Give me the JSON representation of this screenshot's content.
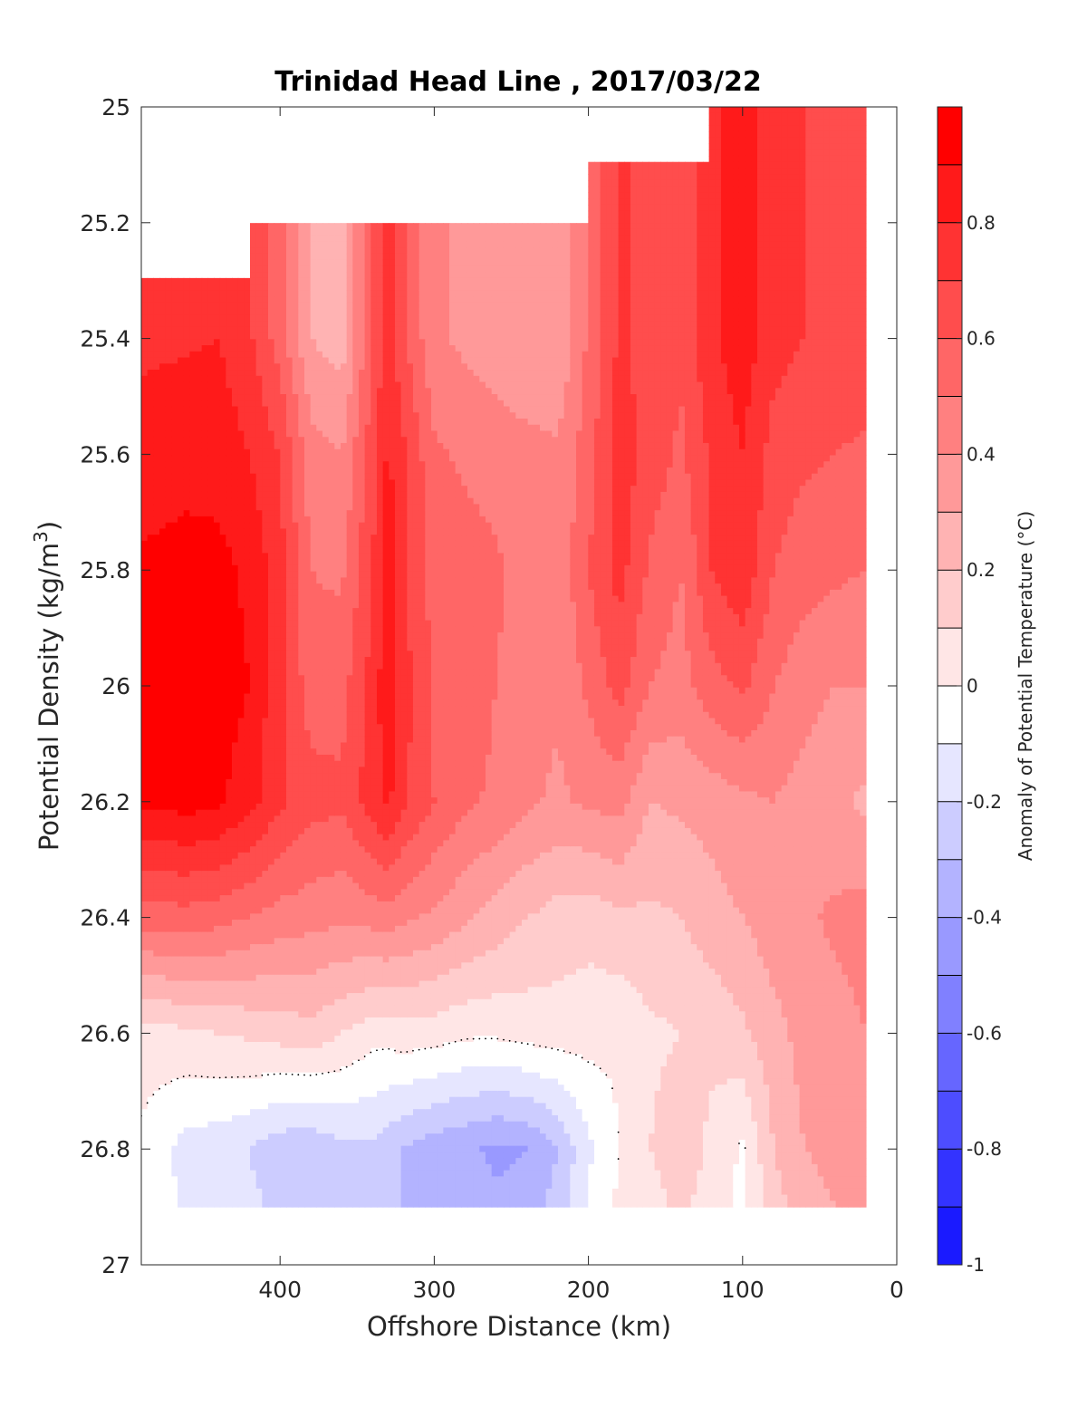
{
  "chart_data": {
    "type": "heatmap",
    "title": "Trinidad Head Line , 2017/03/22",
    "xlabel": "Offshore Distance (km)",
    "ylabel": "Potential Density (kg/m",
    "ylabel_sup": "3",
    "ylabel_close": ")",
    "colorbar_label": "Anomaly of Potential Temperature (°C)",
    "x_reversed": true,
    "xlim": [
      490,
      0
    ],
    "ylim": [
      25,
      27
    ],
    "y_reversed": true,
    "x_ticks": [
      400,
      300,
      200,
      100,
      0
    ],
    "y_ticks": [
      25,
      25.2,
      25.4,
      25.6,
      25.8,
      26,
      26.2,
      26.4,
      26.6,
      26.8,
      27
    ],
    "y_tick_labels": [
      "25",
      "25.2",
      "25.4",
      "25.6",
      "25.8",
      "26",
      "26.2",
      "26.4",
      "26.6",
      "26.8",
      "27"
    ],
    "colorbar": {
      "range": [
        -1,
        1
      ],
      "levels": 20,
      "ticks": [
        0.8,
        0.6,
        0.4,
        0.2,
        0,
        -0.2,
        -0.4,
        -0.6,
        -0.8,
        -1
      ],
      "tick_labels": [
        "0.8",
        "0.6",
        "0.4",
        "0.2",
        "0",
        "-0.2",
        "-0.4",
        "-0.6",
        "-0.8",
        "-1"
      ],
      "colors_top_to_bottom": [
        "#ff0000",
        "#ff1a1a",
        "#ff3333",
        "#ff4d4d",
        "#ff6666",
        "#ff8080",
        "#ff9999",
        "#ffb3b3",
        "#ffcccc",
        "#ffe6e6",
        "#ffffff",
        "#e6e6ff",
        "#ccccff",
        "#b3b3ff",
        "#9999ff",
        "#8080ff",
        "#6666ff",
        "#4d4dff",
        "#3333ff",
        "#1a1aff"
      ]
    },
    "sections": {
      "x": [
        490,
        460,
        440,
        420,
        400,
        380,
        360,
        340,
        330,
        320,
        300,
        280,
        260,
        240,
        220,
        200,
        180,
        160,
        140,
        120,
        100,
        80,
        60,
        40,
        20
      ],
      "top_density": [
        25.3,
        25.3,
        25.3,
        25.3,
        25.2,
        25.2,
        25.2,
        25.2,
        25.2,
        25.2,
        25.2,
        25.2,
        25.2,
        25.2,
        25.2,
        25.2,
        25.1,
        25.1,
        25.1,
        25.1,
        25.0,
        25.0,
        25.0,
        25.0,
        25.0
      ],
      "bottom_density": 26.9,
      "profiles_anomaly": [
        {
          "density": 25.4,
          "values": [
            0.78,
            0.79,
            0.8,
            0.72,
            0.55,
            0.3,
            0.25,
            0.6,
            0.75,
            0.62,
            0.42,
            0.38,
            0.35,
            0.32,
            0.3,
            0.52,
            0.72,
            0.65,
            0.62,
            0.78,
            0.86,
            0.74,
            0.7,
            0.68,
            0.68
          ]
        },
        {
          "density": 25.6,
          "values": [
            0.84,
            0.86,
            0.86,
            0.8,
            0.7,
            0.44,
            0.4,
            0.66,
            0.82,
            0.72,
            0.52,
            0.48,
            0.45,
            0.43,
            0.42,
            0.55,
            0.76,
            0.66,
            0.58,
            0.72,
            0.8,
            0.66,
            0.62,
            0.6,
            0.58
          ]
        },
        {
          "density": 25.8,
          "values": [
            0.92,
            0.94,
            0.93,
            0.88,
            0.74,
            0.5,
            0.48,
            0.7,
            0.85,
            0.72,
            0.56,
            0.55,
            0.52,
            0.46,
            0.42,
            0.6,
            0.74,
            0.58,
            0.5,
            0.7,
            0.78,
            0.6,
            0.54,
            0.52,
            0.5
          ]
        },
        {
          "density": 26.0,
          "values": [
            0.95,
            0.96,
            0.95,
            0.9,
            0.72,
            0.55,
            0.56,
            0.74,
            0.88,
            0.74,
            0.58,
            0.56,
            0.5,
            0.44,
            0.42,
            0.52,
            0.64,
            0.5,
            0.46,
            0.56,
            0.62,
            0.5,
            0.44,
            0.4,
            0.4
          ]
        },
        {
          "density": 26.2,
          "values": [
            0.92,
            0.94,
            0.92,
            0.84,
            0.72,
            0.64,
            0.62,
            0.76,
            0.82,
            0.72,
            0.6,
            0.52,
            0.48,
            0.42,
            0.38,
            0.42,
            0.44,
            0.3,
            0.32,
            0.34,
            0.38,
            0.4,
            0.36,
            0.32,
            0.28
          ]
        },
        {
          "density": 26.4,
          "values": [
            0.55,
            0.56,
            0.54,
            0.5,
            0.46,
            0.44,
            0.42,
            0.44,
            0.45,
            0.42,
            0.38,
            0.32,
            0.26,
            0.2,
            0.16,
            0.14,
            0.18,
            0.18,
            0.2,
            0.26,
            0.3,
            0.36,
            0.38,
            0.42,
            0.44
          ]
        },
        {
          "density": 26.6,
          "values": [
            0.05,
            0.08,
            0.1,
            0.12,
            0.14,
            0.16,
            0.1,
            0.04,
            0.04,
            0.06,
            0.05,
            0.02,
            0.02,
            0.04,
            0.05,
            0.04,
            0.02,
            0.08,
            0.1,
            0.12,
            0.18,
            0.26,
            0.34,
            0.36,
            0.4
          ]
        },
        {
          "density": 26.8,
          "values": [
            -0.02,
            -0.14,
            -0.16,
            -0.2,
            -0.26,
            -0.28,
            -0.22,
            -0.22,
            -0.26,
            -0.3,
            -0.36,
            -0.38,
            -0.42,
            -0.4,
            -0.3,
            -0.12,
            0.0,
            0.1,
            0.16,
            0.08,
            -0.02,
            0.2,
            0.3,
            0.34,
            0.36
          ]
        },
        {
          "density": 26.9,
          "values": [
            -0.02,
            -0.12,
            -0.14,
            -0.18,
            -0.22,
            -0.24,
            -0.2,
            -0.22,
            -0.26,
            -0.3,
            -0.34,
            -0.36,
            -0.38,
            -0.36,
            -0.26,
            -0.08,
            0.02,
            0.06,
            0.12,
            0.06,
            -0.02,
            0.16,
            0.24,
            0.3,
            0.34
          ]
        }
      ]
    }
  }
}
